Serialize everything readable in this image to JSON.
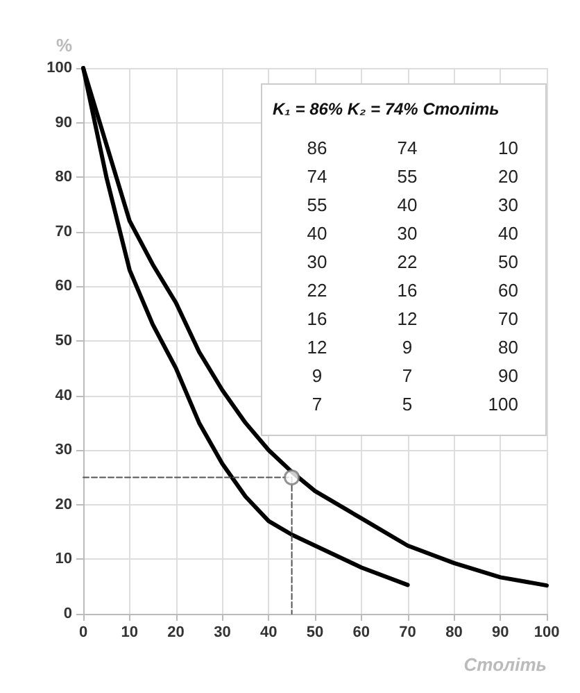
{
  "chart_data": {
    "type": "line",
    "xlabel": "Століть",
    "ylabel": "%",
    "xlim": [
      0,
      100
    ],
    "xticks": [
      0,
      10,
      20,
      30,
      40,
      50,
      60,
      70,
      80,
      90,
      100
    ],
    "ylim": [
      0,
      100
    ],
    "yticks": [
      0,
      10,
      20,
      30,
      40,
      50,
      60,
      70,
      80,
      90,
      100
    ],
    "grid": true,
    "marker": "none",
    "line_style": "solid",
    "series": [
      {
        "color": "#000000",
        "x": [
          0,
          5,
          10,
          15,
          20,
          25,
          30,
          35,
          40,
          45,
          50,
          60,
          70,
          80,
          90,
          100
        ],
        "values": [
          100,
          86,
          72,
          64,
          57,
          48,
          41,
          35,
          30,
          26,
          22.5,
          17.5,
          12.5,
          9.3,
          6.7,
          5.2
        ]
      },
      {
        "color": "#000000",
        "x": [
          0,
          5,
          10,
          15,
          20,
          25,
          30,
          35,
          40,
          45,
          50,
          60,
          70
        ],
        "values": [
          100,
          80,
          63,
          53,
          45,
          35,
          27.5,
          21.5,
          17,
          14.5,
          12.5,
          8.5,
          5.3
        ]
      },
      {
        "color": "#555555",
        "line_style": "dashed",
        "x": [
          0,
          45,
          45
        ],
        "values": [
          25,
          25,
          0
        ]
      },
      {
        "type": "scatter",
        "color": "#777777",
        "marker": "circle",
        "x": [
          45
        ],
        "values": [
          25
        ]
      }
    ],
    "annotations": [
      "K₁ = 86% K₂ = 74% Століть",
      "86 74 10",
      "74 55 20",
      "55 40 30",
      "40 30 40",
      "30 22 50",
      "22 16 60",
      "16 12 70",
      "12 9 80",
      "9 7 90",
      "7 5 100"
    ]
  }
}
